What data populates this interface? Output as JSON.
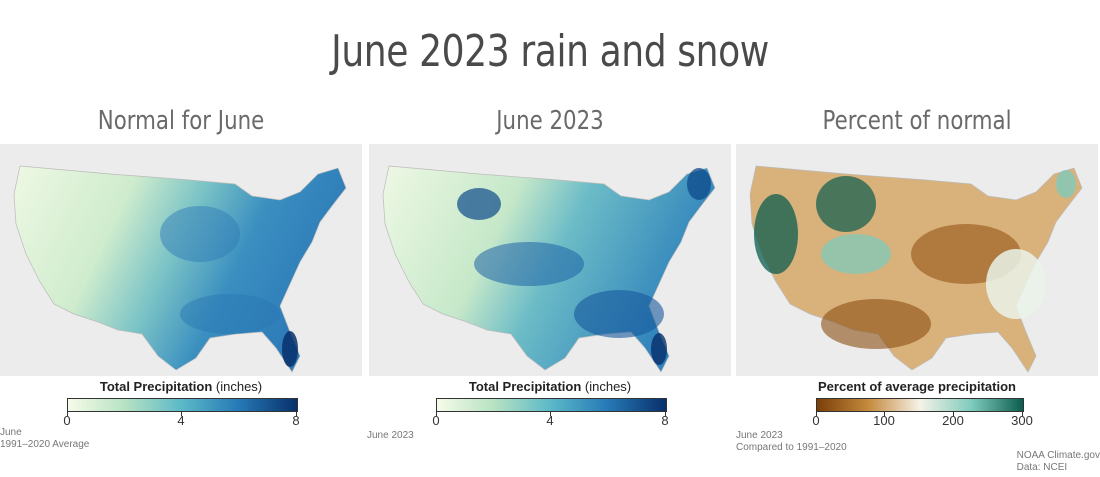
{
  "title": "June 2023 rain and snow",
  "panels": [
    {
      "title": "Normal for June",
      "legend": {
        "bold": "Total Precipitation",
        "rest": " (inches)",
        "ticks": [
          "0",
          "4",
          "8"
        ]
      },
      "note": [
        "June",
        "1991–2020 Average"
      ]
    },
    {
      "title": "June 2023",
      "legend": {
        "bold": "Total Precipitation",
        "rest": " (inches)",
        "ticks": [
          "0",
          "4",
          "8"
        ]
      },
      "note": [
        "June 2023"
      ]
    },
    {
      "title": "Percent of normal",
      "legend": {
        "bold": "Percent of average precipitation",
        "rest": "",
        "ticks": [
          "0",
          "100",
          "200",
          "300"
        ]
      },
      "note": [
        "June 2023",
        "Compared to 1991–2020"
      ]
    }
  ],
  "credit": [
    "NOAA Climate.gov",
    "Data: NCEI"
  ],
  "colors": {
    "precip_scale": [
      "#f7fbe9",
      "#b6e2c2",
      "#5ab8c8",
      "#2578b5",
      "#08306b"
    ],
    "percent_scale": [
      "#7a3f08",
      "#c58a3d",
      "#f5f2e8",
      "#7fcbbc",
      "#0b5d4f"
    ],
    "background": "#ececec"
  }
}
